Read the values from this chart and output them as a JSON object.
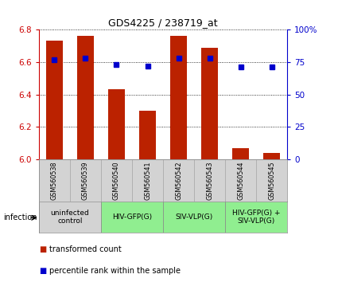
{
  "title": "GDS4225 / 238719_at",
  "samples": [
    "GSM560538",
    "GSM560539",
    "GSM560540",
    "GSM560541",
    "GSM560542",
    "GSM560543",
    "GSM560544",
    "GSM560545"
  ],
  "transformed_counts": [
    6.73,
    6.76,
    6.43,
    6.3,
    6.76,
    6.69,
    6.07,
    6.04
  ],
  "percentile_ranks": [
    77,
    78,
    73,
    72,
    78,
    78,
    71,
    71
  ],
  "ylim_left": [
    6.0,
    6.8
  ],
  "ylim_right": [
    0,
    100
  ],
  "yticks_left": [
    6.0,
    6.2,
    6.4,
    6.6,
    6.8
  ],
  "yticks_right": [
    0,
    25,
    50,
    75,
    100
  ],
  "yticklabels_right": [
    "0",
    "25",
    "50",
    "75",
    "100%"
  ],
  "bar_color": "#BB2200",
  "dot_color": "#0000CC",
  "bar_width": 0.55,
  "group_info": [
    {
      "start": 0,
      "end": 1,
      "label": "uninfected\ncontrol",
      "color": "#d3d3d3"
    },
    {
      "start": 2,
      "end": 3,
      "label": "HIV-GFP(G)",
      "color": "#90EE90"
    },
    {
      "start": 4,
      "end": 5,
      "label": "SIV-VLP(G)",
      "color": "#90EE90"
    },
    {
      "start": 6,
      "end": 7,
      "label": "HIV-GFP(G) +\nSIV-VLP(G)",
      "color": "#90EE90"
    }
  ],
  "infection_label": "infection",
  "legend_items": [
    {
      "color": "#BB2200",
      "label": "transformed count"
    },
    {
      "color": "#0000CC",
      "label": "percentile rank within the sample"
    }
  ],
  "left_axis_color": "#CC0000",
  "right_axis_color": "#0000CC"
}
